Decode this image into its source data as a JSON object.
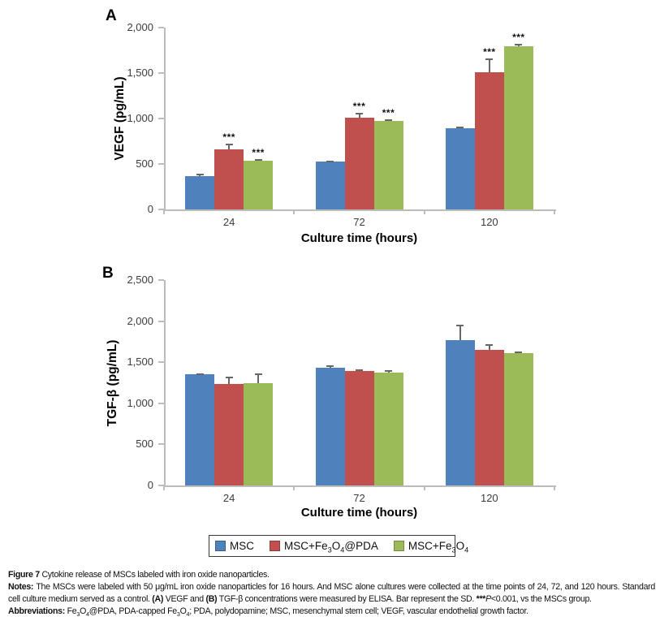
{
  "figure_label": "Figure 7",
  "colors": {
    "background": "#ffffff",
    "axis": "#bcbcbc",
    "error_bar": "#676767",
    "series": {
      "MSC": "#4f81bd",
      "MSC+Fe3O4@PDA": "#c0504d",
      "MSC+Fe3O4": "#9bbb59"
    }
  },
  "chart_data": [
    {
      "id": "A",
      "panel_label": "A",
      "type": "bar",
      "title": "",
      "xlabel": "Culture time (hours)",
      "ylabel": "VEGF (pg/mL)",
      "ylim": [
        0,
        2000
      ],
      "yticks": [
        0,
        500,
        1000,
        1500,
        2000
      ],
      "ytick_labels": [
        "0",
        "500",
        "1,000",
        "1,500",
        "2,000"
      ],
      "categories": [
        "24",
        "72",
        "120"
      ],
      "grid": false,
      "legend_position": "bottom",
      "series": [
        {
          "name": "MSC",
          "color": "#4f81bd",
          "values": [
            370,
            525,
            895
          ],
          "errors": [
            22,
            15,
            12
          ],
          "sig": [
            "",
            "",
            ""
          ]
        },
        {
          "name": "MSC+Fe3O4@PDA",
          "color": "#c0504d",
          "values": [
            660,
            1005,
            1510
          ],
          "errors": [
            62,
            62,
            150
          ],
          "sig": [
            "***",
            "***",
            "***"
          ]
        },
        {
          "name": "MSC+Fe3O4",
          "color": "#9bbb59",
          "values": [
            540,
            975,
            1795
          ],
          "errors": [
            18,
            12,
            25
          ],
          "sig": [
            "***",
            "***",
            "***"
          ]
        }
      ]
    },
    {
      "id": "B",
      "panel_label": "B",
      "type": "bar",
      "title": "",
      "xlabel": "Culture time (hours)",
      "ylabel": "TGF-β (pg/mL)",
      "ylim": [
        0,
        2500
      ],
      "yticks": [
        0,
        500,
        1000,
        1500,
        2000,
        2500
      ],
      "ytick_labels": [
        "0",
        "500",
        "1,000",
        "1,500",
        "2,000",
        "2,500"
      ],
      "categories": [
        "24",
        "72",
        "120"
      ],
      "grid": false,
      "legend_position": "bottom",
      "series": [
        {
          "name": "MSC",
          "color": "#4f81bd",
          "values": [
            1350,
            1435,
            1770
          ],
          "errors": [
            12,
            25,
            185
          ],
          "sig": [
            "",
            "",
            ""
          ]
        },
        {
          "name": "MSC+Fe3O4@PDA",
          "color": "#c0504d",
          "values": [
            1235,
            1395,
            1655
          ],
          "errors": [
            85,
            20,
            60
          ],
          "sig": [
            "",
            "",
            ""
          ]
        },
        {
          "name": "MSC+Fe3O4",
          "color": "#9bbb59",
          "values": [
            1245,
            1375,
            1610
          ],
          "errors": [
            115,
            30,
            25
          ],
          "sig": [
            "",
            "",
            ""
          ]
        }
      ]
    }
  ],
  "legend": {
    "items": [
      {
        "name": "MSC",
        "color": "#4f81bd",
        "label_segments": [
          {
            "text": "MSC"
          }
        ]
      },
      {
        "name": "MSC+Fe3O4@PDA",
        "color": "#c0504d",
        "label_segments": [
          {
            "text": "MSC+Fe"
          },
          {
            "text": "3",
            "style": "sub"
          },
          {
            "text": "O"
          },
          {
            "text": "4",
            "style": "sub"
          },
          {
            "text": "@PDA"
          }
        ]
      },
      {
        "name": "MSC+Fe3O4",
        "color": "#9bbb59",
        "label_segments": [
          {
            "text": "MSC+Fe"
          },
          {
            "text": "3",
            "style": "sub"
          },
          {
            "text": "O"
          },
          {
            "text": "4",
            "style": "sub"
          }
        ]
      }
    ]
  },
  "caption": {
    "paragraphs": [
      {
        "name": "figure-title-line",
        "justify": false,
        "segments": [
          {
            "text": "Figure 7 ",
            "style": "bold"
          },
          {
            "text": "Cytokine release of MSCs labeled with iron oxide nanoparticles."
          }
        ]
      },
      {
        "name": "notes",
        "justify": true,
        "segments": [
          {
            "text": "Notes: ",
            "style": "bold"
          },
          {
            "text": "The MSCs were labeled with 50 μg/mL iron oxide nanoparticles for 16 hours. And MSC alone cultures were collected at the time points of 24, 72, and 120 hours. Standard cell culture medium served as a control. "
          },
          {
            "text": "(A)",
            "style": "bold"
          },
          {
            "text": " VEGF and "
          },
          {
            "text": "(B)",
            "style": "bold"
          },
          {
            "text": " TGF-β concentrations were measured by ELISA. Bar represent the SD. "
          },
          {
            "text": "***",
            "style": "bold"
          },
          {
            "text": "P",
            "style": "italic"
          },
          {
            "text": "<0.001, vs the MSCs group."
          }
        ]
      },
      {
        "name": "abbreviations",
        "justify": false,
        "segments": [
          {
            "text": "Abbreviations: ",
            "style": "bold"
          },
          {
            "text": "Fe"
          },
          {
            "text": "3",
            "style": "sub"
          },
          {
            "text": "O"
          },
          {
            "text": "4",
            "style": "sub"
          },
          {
            "text": "@PDA, PDA-capped Fe"
          },
          {
            "text": "3",
            "style": "sub"
          },
          {
            "text": "O"
          },
          {
            "text": "4",
            "style": "sub"
          },
          {
            "text": "; PDA, polydopamine; MSC, mesenchymal stem cell; VEGF, vascular endothelial growth factor."
          }
        ]
      }
    ]
  }
}
